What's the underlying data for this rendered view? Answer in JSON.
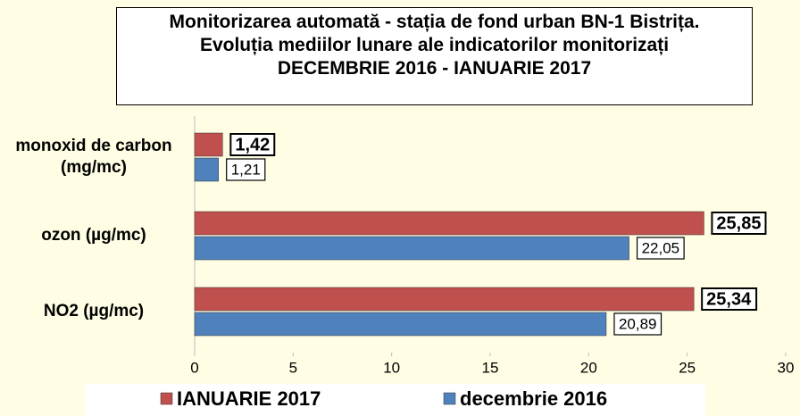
{
  "chart_data": {
    "type": "hbar",
    "title": "Monitorizarea automată - stația de fond urban BN-1 Bistrița. Evoluția mediilor lunare ale indicatorilor monitorizați",
    "subtitle": "DECEMBRIE 2016 - IANUARIE 2017",
    "categories": [
      "monoxid de carbon (mg/mc)",
      "ozon (µg/mc)",
      "NO2 (µg/mc)"
    ],
    "series": [
      {
        "name": "IANUARIE 2017",
        "color": "#c0504d",
        "values": [
          1.42,
          25.85,
          25.34
        ],
        "value_labels": [
          "1,42",
          "25,85",
          "25,34"
        ]
      },
      {
        "name": "decembrie 2016",
        "color": "#4f81bd",
        "values": [
          1.21,
          22.05,
          20.89
        ],
        "value_labels": [
          "1,21",
          "22,05",
          "20,89"
        ]
      }
    ],
    "xlim": [
      0,
      30
    ],
    "xticks": [
      0,
      5,
      10,
      15,
      20,
      25,
      30
    ]
  }
}
